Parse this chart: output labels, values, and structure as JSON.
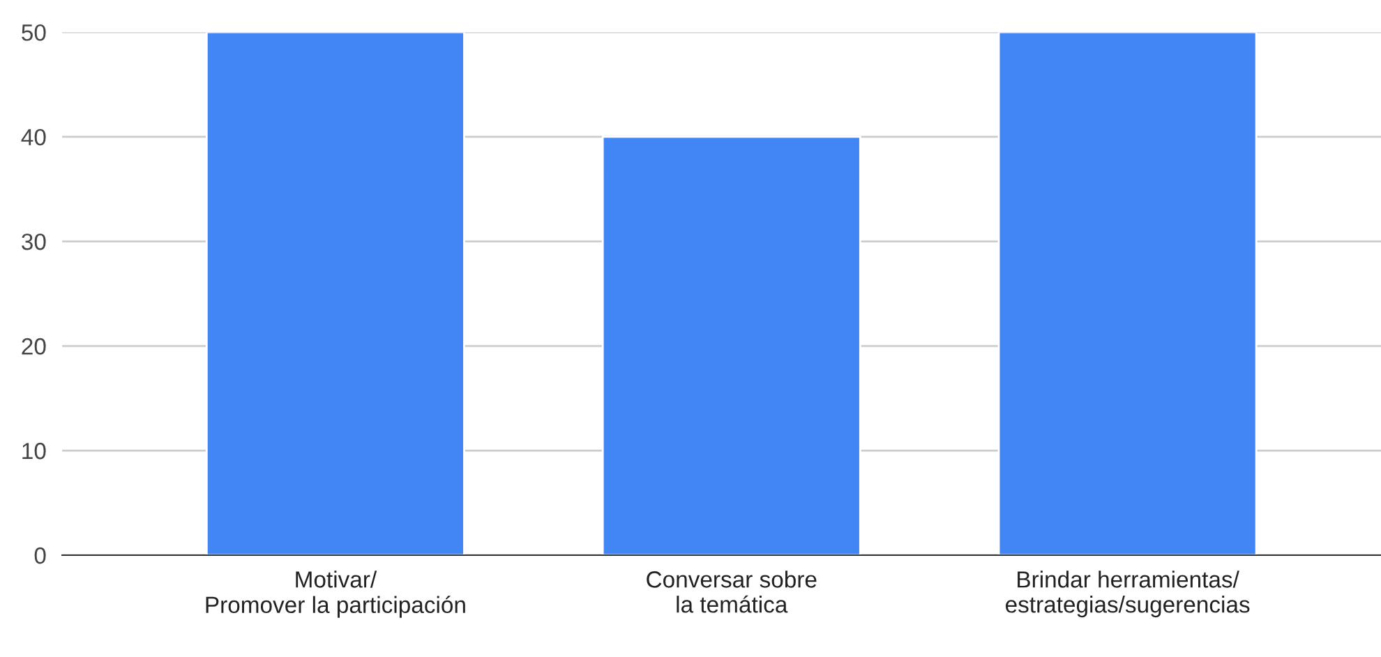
{
  "chart_data": {
    "type": "bar",
    "categories": [
      "Motivar/\nPromover la participación",
      "Conversar sobre\nla temática",
      "Brindar herramientas/\nestrategias/sugerencias"
    ],
    "values": [
      50,
      40,
      50
    ],
    "color": "#4285f4",
    "ylim": [
      0,
      50
    ],
    "yticks": [
      0,
      10,
      20,
      30,
      40,
      50
    ],
    "grid": "y"
  }
}
